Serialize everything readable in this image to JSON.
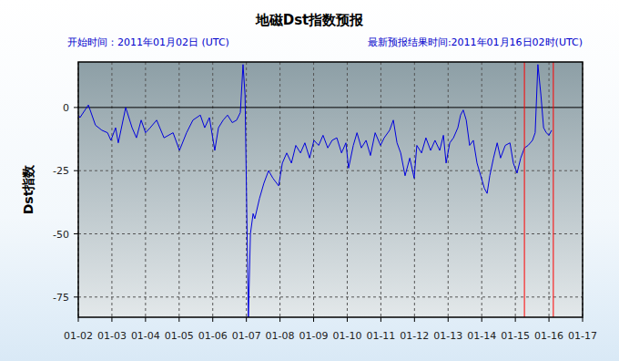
{
  "chart_data": {
    "type": "line",
    "title": "地磁Dst指数预报",
    "subtitle": "开始时间：2011年01月02日 (UTC)",
    "annotations": [
      "最新预报结果时间:2011年01月16日02时(UTC)"
    ],
    "y_label": "Dst指数",
    "xlim": [
      2,
      17
    ],
    "ylim": [
      -83,
      18
    ],
    "xticks": [
      {
        "value": 2,
        "label": "01-02"
      },
      {
        "value": 3,
        "label": "01-03"
      },
      {
        "value": 4,
        "label": "01-04"
      },
      {
        "value": 5,
        "label": "01-05"
      },
      {
        "value": 6,
        "label": "01-06"
      },
      {
        "value": 7,
        "label": "01-07"
      },
      {
        "value": 8,
        "label": "01-08"
      },
      {
        "value": 9,
        "label": "01-09"
      },
      {
        "value": 10,
        "label": "01-10"
      },
      {
        "value": 11,
        "label": "01-11"
      },
      {
        "value": 12,
        "label": "01-12"
      },
      {
        "value": 13,
        "label": "01-13"
      },
      {
        "value": 14,
        "label": "01-14"
      },
      {
        "value": 15,
        "label": "01-15"
      },
      {
        "value": 16,
        "label": "01-16"
      },
      {
        "value": 17,
        "label": "01-17"
      }
    ],
    "yticks": [
      -75,
      -50,
      -25,
      0
    ],
    "grid": true,
    "vlines": [
      {
        "value": 15.27,
        "color": "#ff0000"
      },
      {
        "value": 16.13,
        "color": "#ff0000"
      }
    ],
    "x": [
      2.0,
      2.05,
      2.3,
      2.51,
      2.7,
      2.87,
      2.97,
      3.11,
      3.19,
      3.41,
      3.6,
      3.73,
      3.87,
      4.0,
      4.14,
      4.33,
      4.55,
      4.82,
      5.01,
      5.22,
      5.41,
      5.63,
      5.76,
      5.9,
      6.06,
      6.17,
      6.31,
      6.44,
      6.58,
      6.71,
      6.82,
      6.9,
      6.96,
      7.01,
      7.06,
      7.12,
      7.2,
      7.25,
      7.39,
      7.52,
      7.66,
      7.79,
      7.96,
      8.07,
      8.2,
      8.34,
      8.47,
      8.61,
      8.74,
      8.88,
      9.01,
      9.15,
      9.28,
      9.42,
      9.55,
      9.69,
      9.83,
      9.96,
      10.04,
      10.18,
      10.29,
      10.42,
      10.56,
      10.69,
      10.83,
      10.99,
      11.1,
      11.26,
      11.37,
      11.48,
      11.59,
      11.72,
      11.86,
      11.99,
      12.07,
      12.21,
      12.34,
      12.48,
      12.61,
      12.75,
      12.86,
      12.94,
      13.05,
      13.16,
      13.29,
      13.37,
      13.45,
      13.54,
      13.64,
      13.75,
      13.86,
      13.97,
      14.08,
      14.16,
      14.24,
      14.35,
      14.46,
      14.56,
      14.7,
      14.84,
      14.94,
      15.05,
      15.16,
      15.27,
      15.38,
      15.51,
      15.59,
      15.67,
      15.76,
      15.84,
      15.92,
      16.0,
      16.08
    ],
    "series": [
      {
        "name": "Dst",
        "color": "#0000dd",
        "values": [
          -3,
          -4,
          1,
          -7,
          -9,
          -10,
          -13,
          -8,
          -14,
          0,
          -8,
          -12,
          -5,
          -10,
          -8,
          -5,
          -12,
          -10,
          -17,
          -10,
          -5,
          -3,
          -8,
          -4,
          -17,
          -8,
          -5,
          -3,
          -6,
          -5,
          -2,
          17,
          5,
          -40,
          -83,
          -50,
          -42,
          -44,
          -36,
          -30,
          -25,
          -28,
          -31,
          -22,
          -18,
          -22,
          -15,
          -18,
          -14,
          -20,
          -13,
          -15,
          -11,
          -16,
          -13,
          -12,
          -18,
          -14,
          -24,
          -15,
          -10,
          -16,
          -13,
          -19,
          -10,
          -15,
          -12,
          -9,
          -5,
          -14,
          -18,
          -27,
          -20,
          -28,
          -15,
          -18,
          -12,
          -17,
          -13,
          -17,
          -11,
          -22,
          -14,
          -12,
          -8,
          -3,
          -1,
          -5,
          -15,
          -13,
          -22,
          -27,
          -32,
          -34,
          -27,
          -20,
          -14,
          -20,
          -15,
          -14,
          -22,
          -26,
          -20,
          -16,
          -15,
          -13,
          -10,
          17,
          5,
          -8,
          -10,
          -11,
          -9
        ]
      }
    ]
  }
}
